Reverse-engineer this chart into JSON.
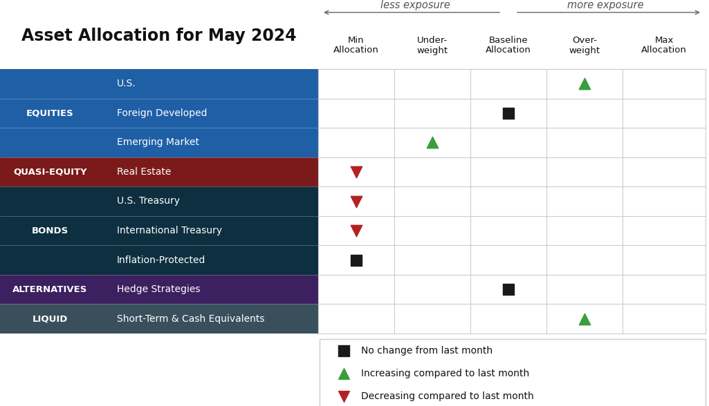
{
  "title": "Asset Allocation for May 2024",
  "title_fontsize": 17,
  "header_arrow_text_left": "less exposure",
  "header_arrow_text_right": "more exposure",
  "col_headers": [
    "Min\nAllocation",
    "Under-\nweight",
    "Baseline\nAllocation",
    "Over-\nweight",
    "Max\nAllocation"
  ],
  "categories": [
    {
      "label": "EQUITIES",
      "color": "#1f5fa6",
      "text_color": "#ffffff",
      "rows": [
        "U.S.",
        "Foreign Developed",
        "Emerging Market"
      ]
    },
    {
      "label": "QUASI-EQUITY",
      "color": "#7b1a1a",
      "text_color": "#ffffff",
      "rows": [
        "Real Estate"
      ]
    },
    {
      "label": "BONDS",
      "color": "#0d2f3f",
      "text_color": "#ffffff",
      "rows": [
        "U.S. Treasury",
        "International Treasury",
        "Inflation-Protected"
      ]
    },
    {
      "label": "ALTERNATIVES",
      "color": "#3d2060",
      "text_color": "#ffffff",
      "rows": [
        "Hedge Strategies"
      ]
    },
    {
      "label": "LIQUID",
      "color": "#3a4f5c",
      "text_color": "#ffffff",
      "rows": [
        "Short-Term & Cash Equivalents"
      ]
    }
  ],
  "row_data": [
    {
      "asset": "U.S.",
      "col": 3,
      "symbol": "up_triangle",
      "color": "#3a9e3a"
    },
    {
      "asset": "Foreign Developed",
      "col": 2,
      "symbol": "square",
      "color": "#1a1a1a"
    },
    {
      "asset": "Emerging Market",
      "col": 1,
      "symbol": "up_triangle",
      "color": "#3a9e3a"
    },
    {
      "asset": "Real Estate",
      "col": 0,
      "symbol": "down_triangle",
      "color": "#b22222"
    },
    {
      "asset": "U.S. Treasury",
      "col": 0,
      "symbol": "down_triangle",
      "color": "#b22222"
    },
    {
      "asset": "International Treasury",
      "col": 0,
      "symbol": "down_triangle",
      "color": "#b22222"
    },
    {
      "asset": "Inflation-Protected",
      "col": 0,
      "symbol": "square",
      "color": "#1a1a1a"
    },
    {
      "asset": "Hedge Strategies",
      "col": 2,
      "symbol": "square",
      "color": "#1a1a1a"
    },
    {
      "asset": "Short-Term & Cash Equivalents",
      "col": 3,
      "symbol": "up_triangle",
      "color": "#3a9e3a"
    }
  ],
  "legend_items": [
    {
      "symbol": "square",
      "color": "#1a1a1a",
      "label": "No change from last month"
    },
    {
      "symbol": "up_triangle",
      "color": "#3a9e3a",
      "label": "Increasing compared to last month"
    },
    {
      "symbol": "down_triangle",
      "color": "#b22222",
      "label": "Decreasing compared to last month"
    }
  ],
  "grid_color": "#cccccc",
  "fig_width": 10.25,
  "fig_height": 5.88,
  "dpi": 100
}
